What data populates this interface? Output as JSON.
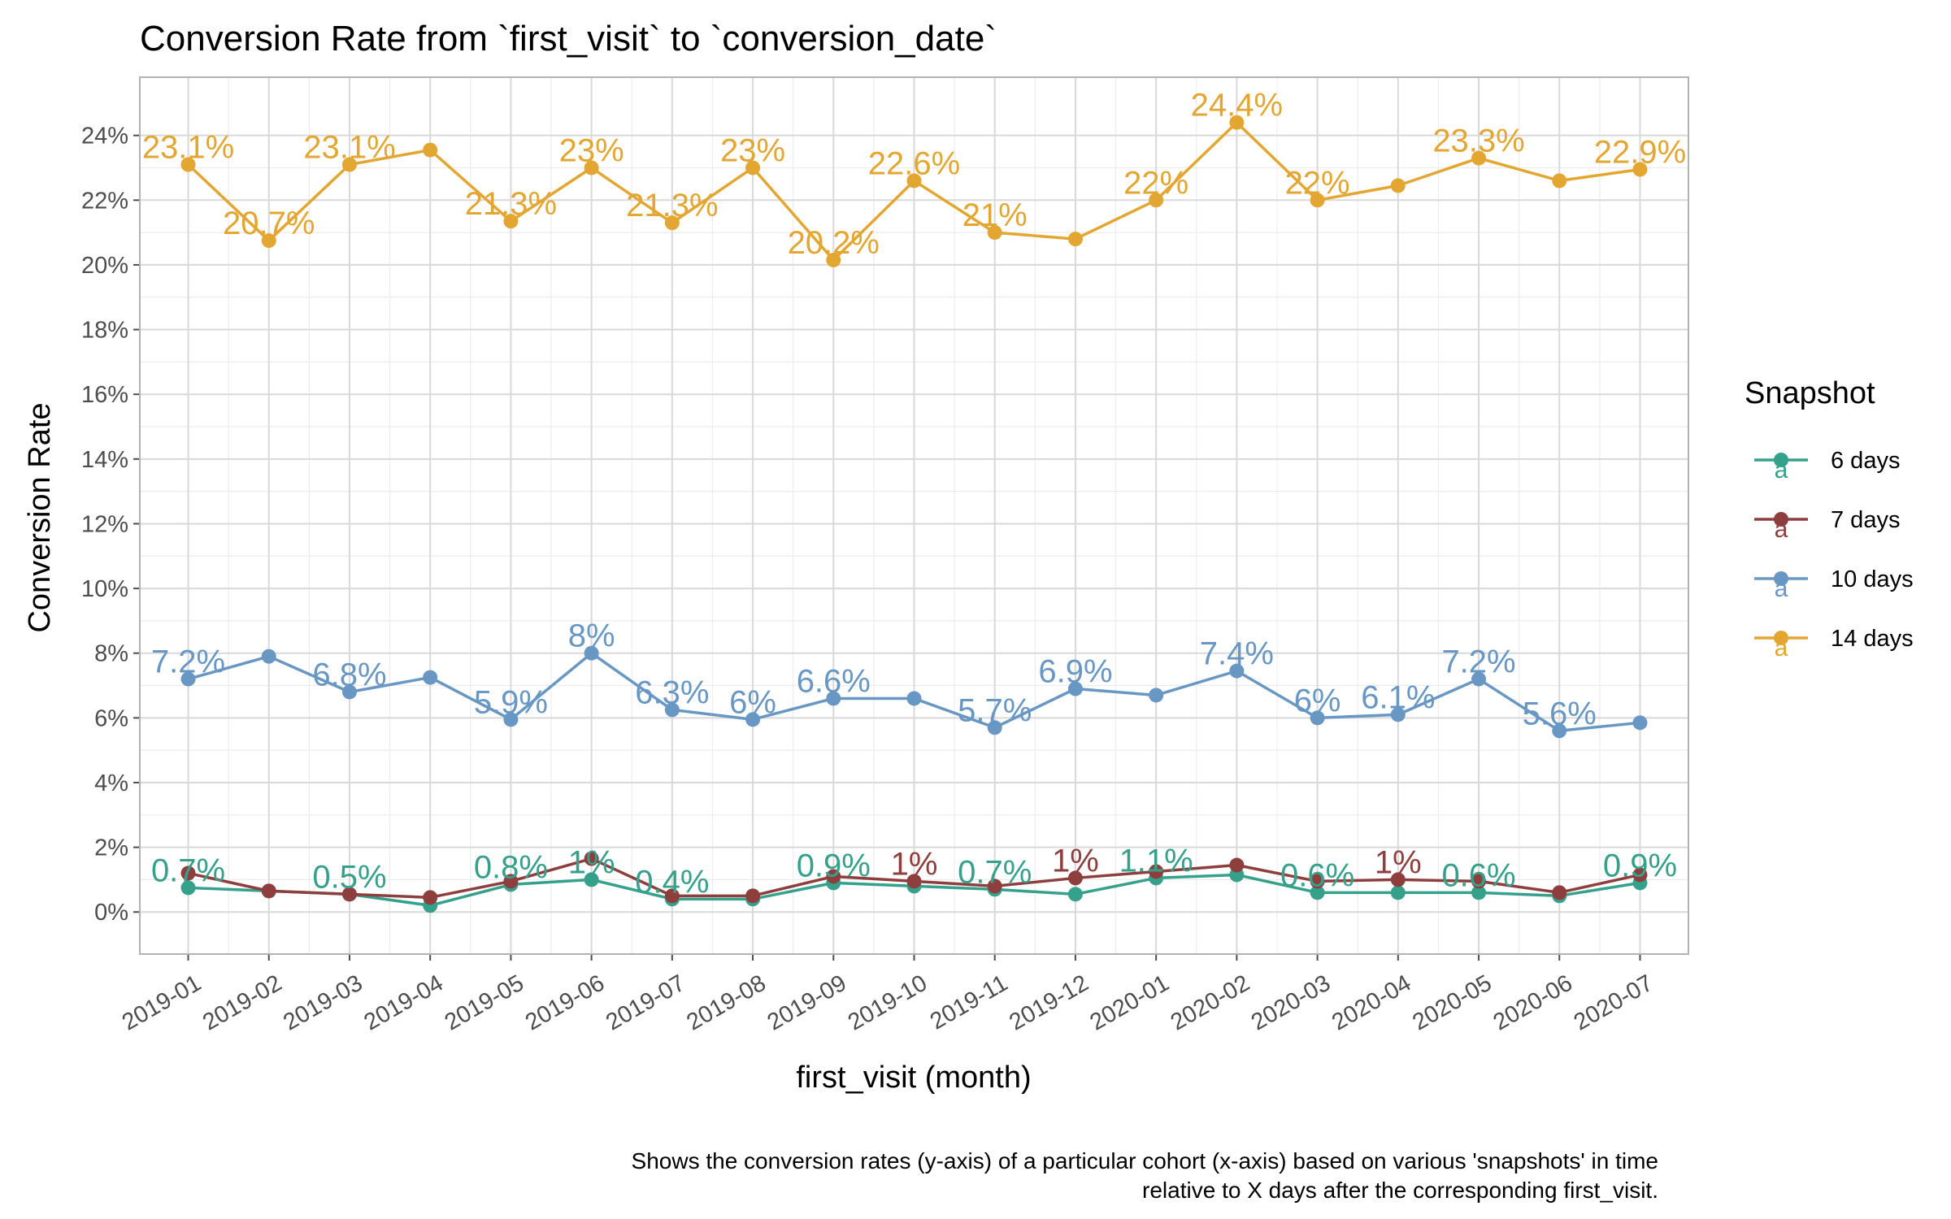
{
  "chart_data": {
    "type": "line",
    "title": "Conversion Rate from `first_visit` to `conversion_date`",
    "xlabel": "first_visit (month)",
    "ylabel": "Conversion Rate",
    "caption_lines": [
      "Shows the conversion rates (y-axis) of a particular cohort (x-axis) based on various 'snapshots' in time",
      "relative to X days after the corresponding first_visit."
    ],
    "categories": [
      "2019-01",
      "2019-02",
      "2019-03",
      "2019-04",
      "2019-05",
      "2019-06",
      "2019-07",
      "2019-08",
      "2019-09",
      "2019-10",
      "2019-11",
      "2019-12",
      "2020-01",
      "2020-02",
      "2020-03",
      "2020-04",
      "2020-05",
      "2020-06",
      "2020-07"
    ],
    "ylim": [
      -1.3,
      25.8
    ],
    "yticks": [
      0,
      2,
      4,
      6,
      8,
      10,
      12,
      14,
      16,
      18,
      20,
      22,
      24
    ],
    "ytick_labels": [
      "0%",
      "2%",
      "4%",
      "6%",
      "8%",
      "10%",
      "12%",
      "14%",
      "16%",
      "18%",
      "20%",
      "22%",
      "24%"
    ],
    "grid": true,
    "legend": {
      "title": "Snapshot",
      "position": "right"
    },
    "series": [
      {
        "name": "6 days",
        "color": "#35a18b",
        "values": [
          0.75,
          0.65,
          0.55,
          0.2,
          0.85,
          1.0,
          0.4,
          0.4,
          0.9,
          0.8,
          0.7,
          0.55,
          1.05,
          1.15,
          0.6,
          0.6,
          0.6,
          0.5,
          0.9
        ],
        "labels": [
          "0.7%",
          null,
          "0.5%",
          null,
          "0.8%",
          "1%",
          "0.4%",
          null,
          "0.9%",
          null,
          "0.7%",
          null,
          "1.1%",
          null,
          "0.6%",
          null,
          "0.6%",
          null,
          "0.9%"
        ]
      },
      {
        "name": "7 days",
        "color": "#8e3f3d",
        "values": [
          1.2,
          0.65,
          0.55,
          0.45,
          0.95,
          1.65,
          0.5,
          0.5,
          1.1,
          0.95,
          0.8,
          1.05,
          1.25,
          1.45,
          0.95,
          1.0,
          0.95,
          0.6,
          1.15
        ],
        "labels": [
          null,
          null,
          null,
          null,
          null,
          null,
          null,
          null,
          null,
          "1%",
          null,
          "1%",
          null,
          null,
          null,
          "1%",
          null,
          null,
          null
        ]
      },
      {
        "name": "10 days",
        "color": "#6897c4",
        "values": [
          7.2,
          7.9,
          6.8,
          7.25,
          5.95,
          8.0,
          6.25,
          5.95,
          6.6,
          6.6,
          5.7,
          6.9,
          6.7,
          7.45,
          6.0,
          6.1,
          7.2,
          5.6,
          5.85
        ],
        "labels": [
          "7.2%",
          null,
          "6.8%",
          null,
          "5.9%",
          "8%",
          "6.3%",
          "6%",
          "6.6%",
          null,
          "5.7%",
          "6.9%",
          null,
          "7.4%",
          "6%",
          "6.1%",
          "7.2%",
          "5.6%",
          null
        ]
      },
      {
        "name": "14 days",
        "color": "#e3a631",
        "values": [
          23.1,
          20.75,
          23.1,
          23.55,
          21.35,
          23.0,
          21.3,
          23.0,
          20.15,
          22.6,
          21.0,
          20.8,
          22.0,
          24.4,
          22.0,
          22.45,
          23.3,
          22.6,
          22.95
        ],
        "labels": [
          "23.1%",
          "20.7%",
          "23.1%",
          null,
          "21.3%",
          "23%",
          "21.3%",
          "23%",
          "20.2%",
          "22.6%",
          "21%",
          null,
          "22%",
          "24.4%",
          "22%",
          null,
          "23.3%",
          null,
          "22.9%"
        ]
      }
    ]
  }
}
